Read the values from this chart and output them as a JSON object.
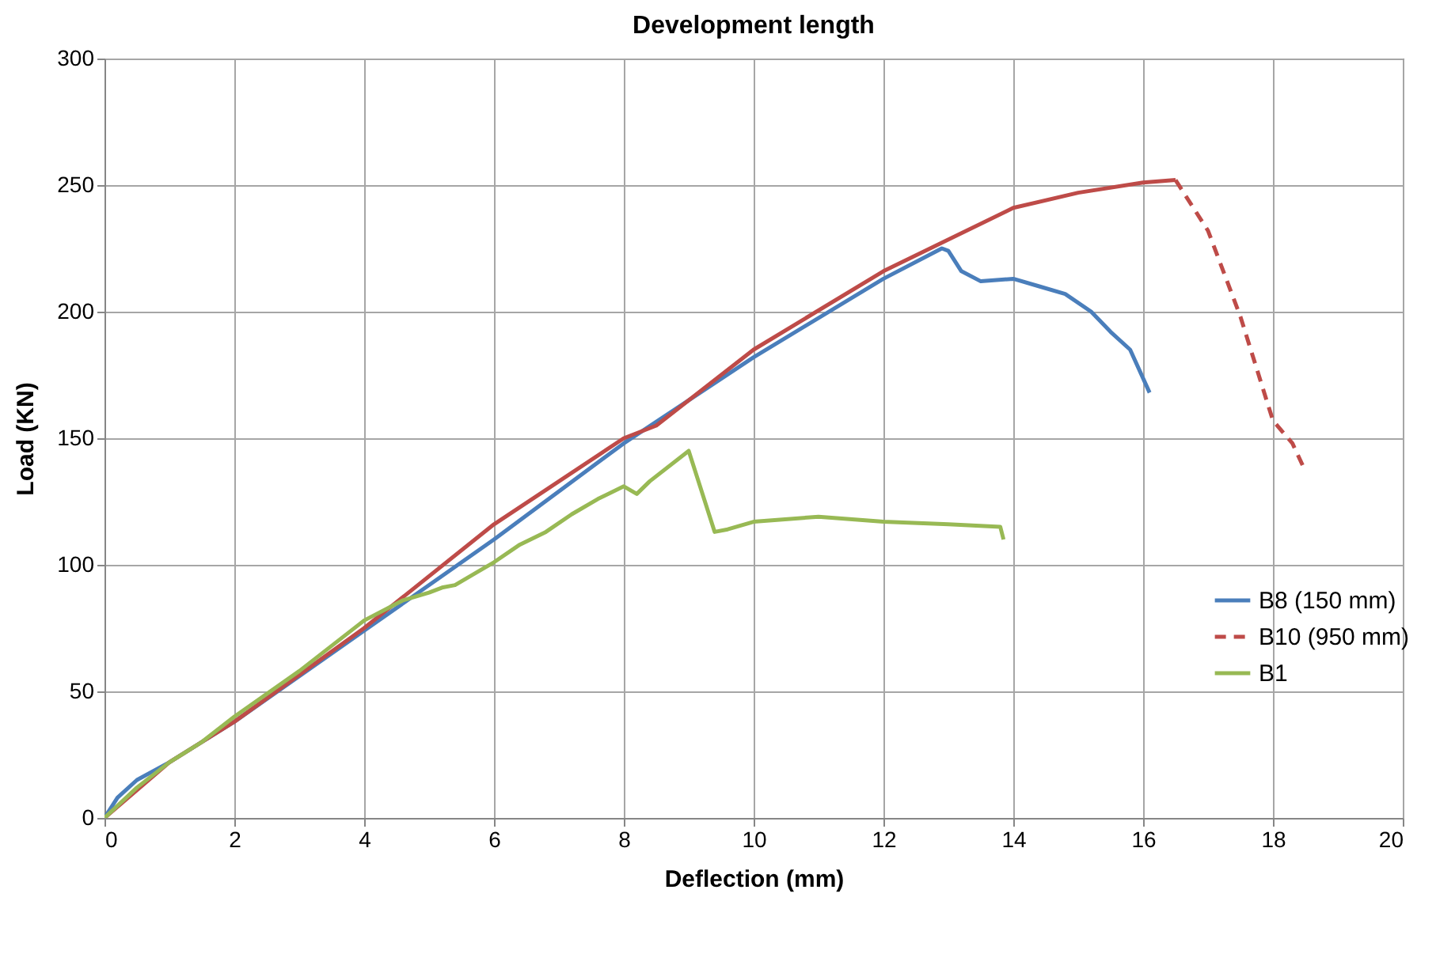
{
  "chart_data": {
    "type": "line",
    "title": "Development length",
    "xlabel": "Deflection (mm)",
    "ylabel": "Load (KN)",
    "xlim": [
      0,
      20
    ],
    "xticks": [
      0,
      2,
      4,
      6,
      8,
      10,
      12,
      14,
      16,
      18,
      20
    ],
    "ylim": [
      0,
      300
    ],
    "yticks": [
      0,
      50,
      100,
      150,
      200,
      250,
      300
    ],
    "grid": true,
    "legend": "right",
    "marker": "none",
    "series": [
      {
        "name": "B8 (150 mm)",
        "color": "#4a7ebb",
        "line_style": "solid",
        "x": [
          0,
          0.2,
          0.5,
          1,
          2,
          4,
          6,
          8,
          10,
          12,
          12.9,
          13,
          13.2,
          13.5,
          14,
          14.4,
          14.8,
          15.2,
          15.5,
          15.8,
          16.1
        ],
        "values": [
          0,
          8,
          15,
          22,
          38,
          74,
          110,
          148,
          182,
          213,
          225,
          224,
          216,
          212,
          213,
          210,
          207,
          200,
          192,
          185,
          168
        ]
      },
      {
        "color": "#be4b48",
        "line_style": "solid",
        "x": [
          0,
          1,
          2,
          4,
          6,
          8,
          8.5,
          10,
          12,
          14,
          15,
          16,
          16.5
        ],
        "values": [
          0,
          22,
          38,
          75,
          116,
          150,
          155,
          185,
          216,
          241,
          247,
          251,
          252
        ]
      },
      {
        "name": "B10 (950 mm)",
        "color": "#be4b48",
        "line_style": "dashed",
        "x": [
          16.5,
          17,
          17.5,
          18,
          18.3,
          18.5
        ],
        "values": [
          252,
          232,
          198,
          157,
          148,
          137
        ]
      },
      {
        "name": "B1",
        "color": "#98b954",
        "line_style": "solid",
        "x": [
          0,
          0.5,
          1,
          1.5,
          2,
          3,
          4,
          4.6,
          5,
          5.2,
          5.4,
          5.8,
          6,
          6.4,
          6.8,
          7.2,
          7.6,
          8,
          8.2,
          8.4,
          9,
          9.4,
          9.6,
          10,
          11,
          12,
          13,
          13.8,
          13.85
        ],
        "values": [
          0,
          12,
          22,
          30,
          40,
          58,
          78,
          86,
          89,
          91,
          92,
          98,
          101,
          108,
          113,
          120,
          126,
          131,
          128,
          133,
          145,
          113,
          114,
          117,
          119,
          117,
          116,
          115,
          110
        ]
      }
    ]
  }
}
